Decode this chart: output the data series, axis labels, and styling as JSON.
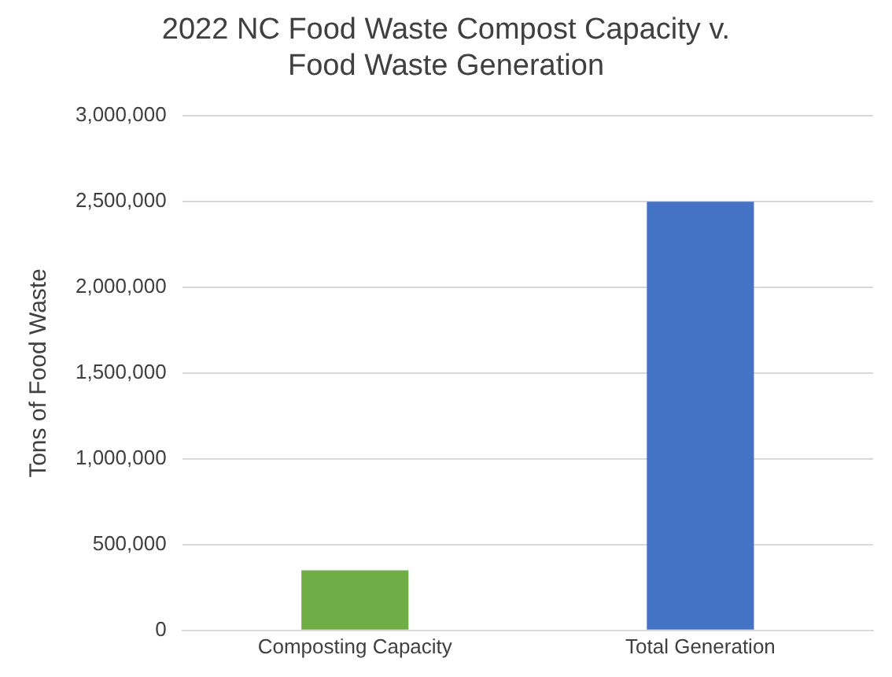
{
  "chart_data": {
    "type": "bar",
    "title": "2022 NC Food Waste Compost Capacity v.\nFood Waste Generation",
    "ylabel": "Tons of Food Waste",
    "categories": [
      "Composting Capacity",
      "Total Generation"
    ],
    "values": [
      350000,
      2500000
    ],
    "colors": [
      "#70ad47",
      "#4472c4"
    ],
    "ylim": [
      0,
      3000000
    ],
    "yticks": [
      0,
      {
        "value": 500000,
        "label": "500,000"
      },
      {
        "value": 1000000,
        "label": "1,000,000"
      },
      {
        "value": 1500000,
        "label": "1,500,000"
      },
      {
        "value": 2000000,
        "label": "2,000,000"
      },
      {
        "value": 2500000,
        "label": "2,500,000"
      },
      {
        "value": 3000000,
        "label": "3,000,000"
      }
    ],
    "grid": "y",
    "legend": false
  }
}
